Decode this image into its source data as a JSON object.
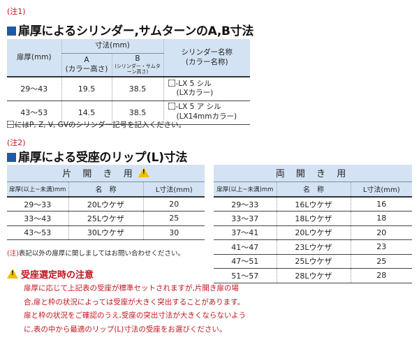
{
  "section1": {
    "note_tag": "(注1)",
    "heading": "扉厚によるシリンダー,サムターンのA,B寸法",
    "table": {
      "header_door": "扉厚(mm)",
      "header_dim": "寸法(mm)",
      "header_a_line1": "A",
      "header_a_line2": "(カラー高さ)",
      "header_b_line1": "B",
      "header_b_line2": "(シリンダー・サムターン高さ)",
      "header_name_line1": "シリンダー名称",
      "header_name_line2": "(カラー名称)",
      "rows": [
        {
          "door": "29～43",
          "a": "19.5",
          "b": "38.5",
          "name1": "-LX 5 シル",
          "name2": "(LXカラー)"
        },
        {
          "door": "43～53",
          "a": "14.5",
          "b": "38.5",
          "name1": "-LX 5 ア シル",
          "name2": "(LX14mmカラー)"
        }
      ]
    },
    "note": "にはP, Z, V, GVのシリンダー記号を記入ください。"
  },
  "section2": {
    "note_tag": "(注2)",
    "heading": "扉厚による受座のリップ(L)寸法",
    "single": {
      "title": "片 開 き 用",
      "col_door": "扉厚(以上~未満)mm",
      "col_name": "名　称",
      "col_l": "L寸法(mm)",
      "rows": [
        {
          "door": "29～33",
          "name": "20Lウケザ",
          "l": "20"
        },
        {
          "door": "33～43",
          "name": "25Lウケザ",
          "l": "25"
        },
        {
          "door": "43～53",
          "name": "30Lウケザ",
          "l": "30"
        }
      ]
    },
    "double": {
      "title": "両 開 き 用",
      "col_door": "扉厚(以上~未満)mm",
      "col_name": "名　称",
      "col_l": "L寸法(mm)",
      "rows": [
        {
          "door": "29～33",
          "name": "16Lウケザ",
          "l": "16"
        },
        {
          "door": "33～37",
          "name": "18Lウケザ",
          "l": "18"
        },
        {
          "door": "37～41",
          "name": "20Lウケザ",
          "l": "20"
        },
        {
          "door": "41～47",
          "name": "23Lウケザ",
          "l": "23"
        },
        {
          "door": "47～51",
          "name": "25Lウケザ",
          "l": "25"
        },
        {
          "door": "51～57",
          "name": "28Lウケザ",
          "l": "28"
        }
      ]
    },
    "footnote_tag": "(注)",
    "footnote": "表記以外の扉厚に関しましてはお問い合わせください。"
  },
  "caution": {
    "title": "受座選定時の注意",
    "lines": [
      "扉厚に応じて上記表の受座が標準セットされますが,片開き扉の場",
      "合,扉と枠の状況によっては受座が大きく突出することがあります。",
      "扉と枠の状況をご確認のうえ,受座の突出寸法が大きくならないよう",
      "に,表の中から最適のリップ(L)寸法の受座をお選びください。"
    ]
  },
  "colors": {
    "accent_blue": "#1f5aa5",
    "header_bg": "#d4e3f3",
    "caution_red": "#c0161f",
    "warning_yellow": "#f0c000"
  },
  "icons": [
    "blue-square-bullet-icon",
    "dashed-box-placeholder-icon",
    "warning-triangle-icon"
  ]
}
